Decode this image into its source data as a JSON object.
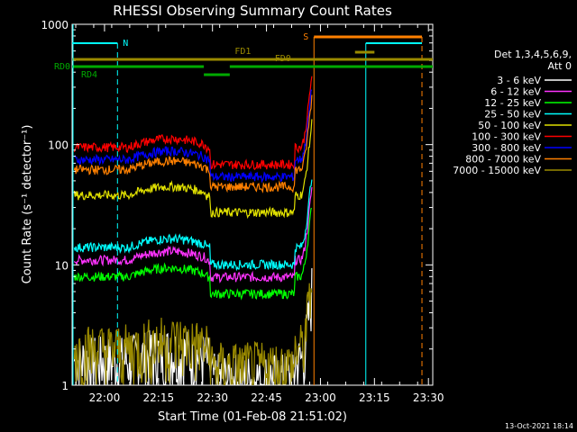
{
  "chart_data": {
    "type": "line",
    "title": "RHESSI Observing Summary Count Rates",
    "xlabel": "Start Time (01-Feb-08 21:51:02)",
    "ylabel": "Count Rate (s⁻¹ detector⁻¹)",
    "ylog": true,
    "ylim": [
      1,
      1000
    ],
    "xlim_minutes": [
      21.85,
      23.52
    ],
    "x_ticks": [
      "22:00",
      "22:15",
      "22:30",
      "22:45",
      "23:00",
      "23:15",
      "23:30"
    ],
    "y_ticks": [
      "1",
      "10",
      "100",
      "1000"
    ],
    "legend_header": [
      "Det 1,3,4,5,6,9,",
      "Att 0"
    ],
    "legend_position": "right",
    "footer_date": "13-Oct-2021 18:14",
    "series": [
      {
        "name": "3 - 6 keV",
        "color": "#ffffff",
        "level": 1.6
      },
      {
        "name": "6 - 12 keV",
        "color": "#ff33ff",
        "level": 11
      },
      {
        "name": "12 - 25 keV",
        "color": "#00ff00",
        "level": 8
      },
      {
        "name": "25 - 50 keV",
        "color": "#00ffff",
        "level": 14
      },
      {
        "name": "50 - 100 keV",
        "color": "#e0e000",
        "level": 38
      },
      {
        "name": "100 - 300 keV",
        "color": "#ff0000",
        "level": 95
      },
      {
        "name": "300 - 800 keV",
        "color": "#0000ff",
        "level": 75
      },
      {
        "name": "800 - 7000 keV",
        "color": "#ff8000",
        "level": 62
      },
      {
        "name": "7000 - 15000 keV",
        "color": "#9a8a00",
        "level": 2
      }
    ],
    "annotations": [
      {
        "label": "N",
        "color": "#00ffff"
      },
      {
        "label": "S",
        "color": "#ff8000"
      },
      {
        "label": "FD1",
        "color": "#9a8a00"
      },
      {
        "label": "FD0",
        "color": "#9a8a00"
      },
      {
        "label": "RD0",
        "color": "#00aa00"
      },
      {
        "label": "RD4",
        "color": "#00aa00"
      }
    ]
  }
}
